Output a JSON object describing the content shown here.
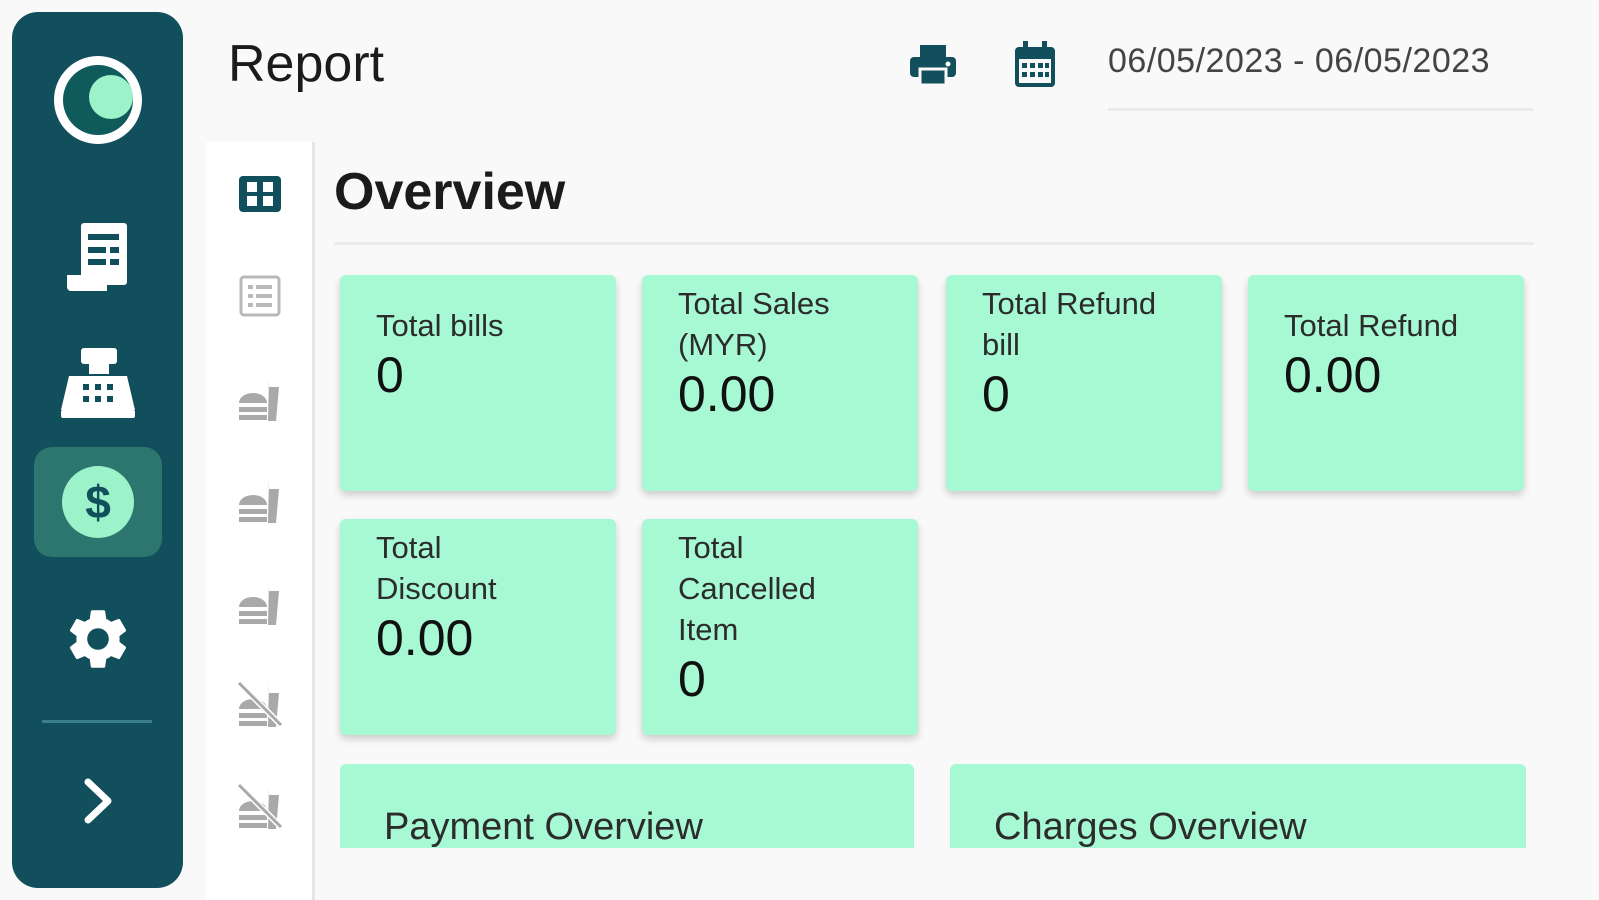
{
  "header": {
    "title": "Report",
    "date_range": "06/05/2023 - 06/05/2023"
  },
  "sidebar": {
    "items": [
      {
        "name": "profile-logo",
        "icon": "avatar-logo"
      },
      {
        "name": "orders",
        "icon": "receipt-icon"
      },
      {
        "name": "cashier",
        "icon": "cash-register-icon"
      },
      {
        "name": "report",
        "icon": "dollar-icon",
        "active": true
      },
      {
        "name": "settings",
        "icon": "gear-icon"
      },
      {
        "name": "expand",
        "icon": "chevron-right-icon"
      }
    ],
    "colors": {
      "background": "#124f5c",
      "active": "#2d756f",
      "accent": "#9cf3c9"
    }
  },
  "overview": {
    "title": "Overview",
    "cards": [
      {
        "label": "Total bills",
        "value": "0"
      },
      {
        "label": "Total Sales (MYR)",
        "value": "0.00"
      },
      {
        "label": "Total Refund bill",
        "value": "0"
      },
      {
        "label": "Total Refund",
        "value": "0.00"
      },
      {
        "label": "Total Discount",
        "value": "0.00"
      },
      {
        "label": "Total Cancelled Item",
        "value": "0"
      }
    ],
    "card_color": "#a6f9d2"
  },
  "sections": {
    "payment": "Payment Overview",
    "charges": "Charges Overview"
  }
}
